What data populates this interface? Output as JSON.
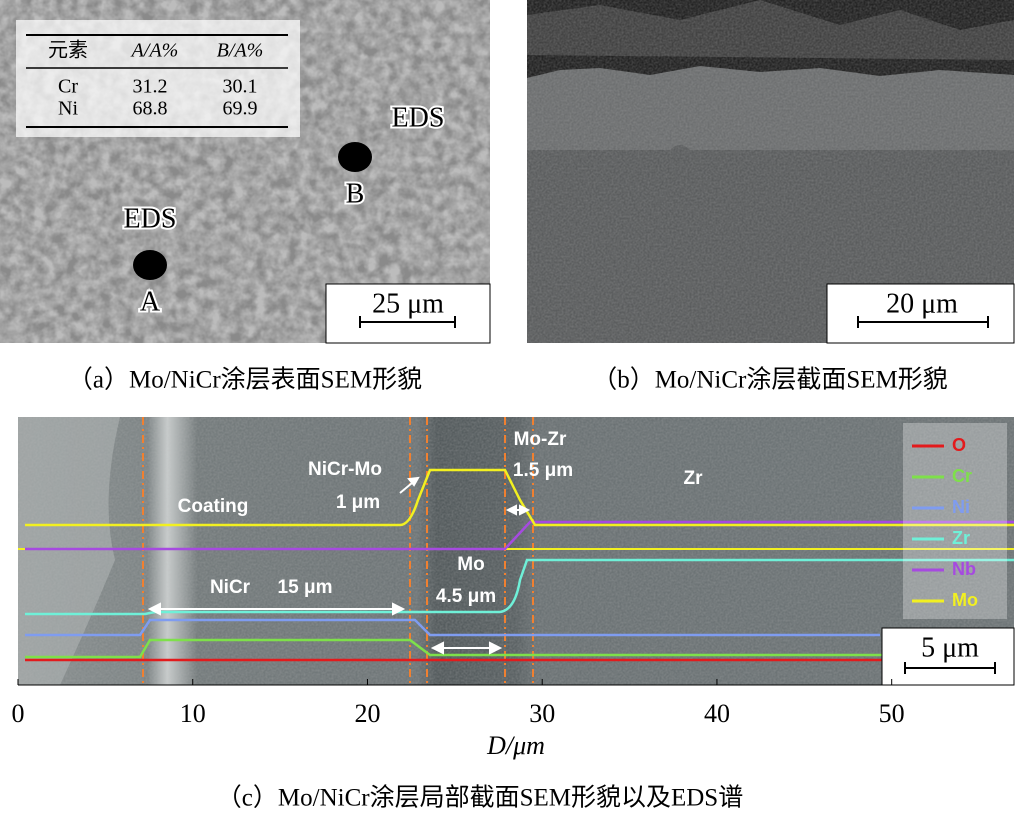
{
  "panels": [
    {
      "caption": "（a）Mo/NiCr涂层表面SEM形貌",
      "table": {
        "header": [
          "元素",
          "A/A%",
          "B/A%"
        ],
        "rows": [
          [
            "Cr",
            "31.2",
            "30.1"
          ],
          [
            "Ni",
            "68.8",
            "69.9"
          ]
        ]
      },
      "labels": [
        "EDS",
        "B",
        "EDS",
        "A"
      ],
      "scale_bar": "25 μm"
    },
    {
      "caption": "（b）Mo/NiCr涂层截面SEM形貌",
      "scale_bar": "20 μm"
    },
    {
      "caption": "（c）Mo/NiCr涂层局部截面SEM形貌以及EDS谱",
      "annotations": [
        "Coating",
        "NiCr-Mo",
        "1 μm",
        "Mo-Zr",
        "1.5 μm",
        "Zr",
        "NiCr",
        "15 μm",
        "Mo",
        "4.5 μm"
      ],
      "legend": [
        {
          "name": "O",
          "color": "#e31a1c"
        },
        {
          "name": "Cr",
          "color": "#7ee04a"
        },
        {
          "name": "Ni",
          "color": "#7f9cf0"
        },
        {
          "name": "Zr",
          "color": "#6ff0d8"
        },
        {
          "name": "Nb",
          "color": "#a64ae0"
        },
        {
          "name": "Mo",
          "color": "#f2f020"
        }
      ],
      "scale_bar": "5 μm",
      "x_axis": {
        "label": "D/μm",
        "xlim": [
          0,
          57
        ],
        "xticks": [
          0,
          10,
          20,
          30,
          40,
          50
        ]
      }
    }
  ]
}
